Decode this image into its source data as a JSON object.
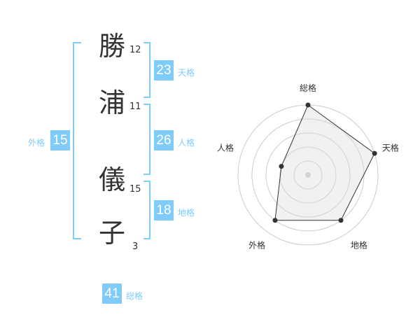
{
  "name_chars": [
    {
      "char": "勝",
      "strokes": "12"
    },
    {
      "char": "浦",
      "strokes": "11"
    },
    {
      "char": "儀",
      "strokes": "15"
    },
    {
      "char": "子",
      "strokes": "3"
    }
  ],
  "kaku": {
    "tenkaku": {
      "value": "23",
      "label": "天格"
    },
    "jinkaku": {
      "value": "26",
      "label": "人格"
    },
    "chikaku": {
      "value": "18",
      "label": "地格"
    },
    "gaikaku": {
      "value": "15",
      "label": "外格"
    },
    "soukaku": {
      "value": "41",
      "label": "総格"
    }
  },
  "colors": {
    "accent": "#7fcbf9",
    "text": "#333333"
  },
  "chart_data": {
    "type": "radar",
    "axes": [
      "総格",
      "天格",
      "地格",
      "外格",
      "人格"
    ],
    "values": [
      5,
      5,
      4,
      4,
      2
    ],
    "range": [
      0,
      5
    ],
    "grid": "concentric circles"
  }
}
